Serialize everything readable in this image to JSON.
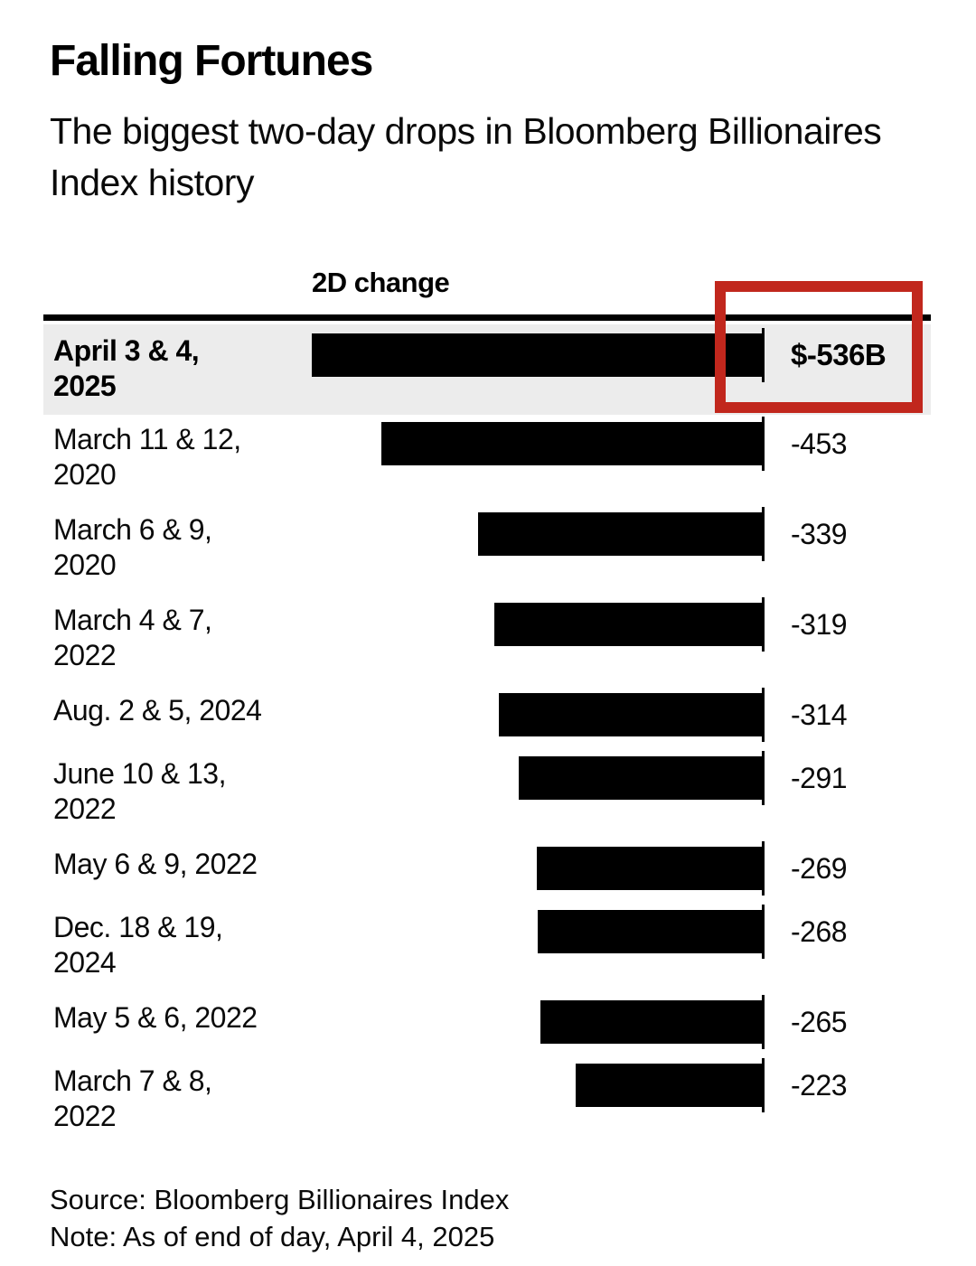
{
  "title": "Falling Fortunes",
  "subtitle": "The biggest two-day drops in Bloomberg Billionaires Index history",
  "column_header": "2D change",
  "chart_data": {
    "type": "bar",
    "orientation": "horizontal",
    "unit": "USD billions",
    "axis_max_abs": 536,
    "categories": [
      "April 3 & 4, 2025",
      "March 11 & 12, 2020",
      "March 6 & 9, 2020",
      "March 4 & 7, 2022",
      "Aug. 2 & 5, 2024",
      "June 10 & 13, 2022",
      "May 6 & 9, 2022",
      "Dec. 18 & 19, 2024",
      "May 5 & 6, 2022",
      "March 7 & 8, 2022"
    ],
    "values": [
      -536,
      -453,
      -339,
      -319,
      -314,
      -291,
      -269,
      -268,
      -265,
      -223
    ],
    "value_labels": [
      "$-536B",
      "-453",
      "-339",
      "-319",
      "-314",
      "-291",
      "-269",
      "-268",
      "-265",
      "-223"
    ],
    "highlight_index": 0,
    "bars_aligned": "right-baseline",
    "grid": false,
    "legend": false,
    "annotation": "red rectangle outlining the highlighted $-536B value"
  },
  "rows": [
    {
      "date_line1": "April 3 & 4,",
      "date_line2": "2025",
      "value_label": "$-536B"
    },
    {
      "date_line1": "March 11 & 12,",
      "date_line2": "2020",
      "value_label": "-453"
    },
    {
      "date_line1": "March 6 & 9,",
      "date_line2": "2020",
      "value_label": "-339"
    },
    {
      "date_line1": "March 4 & 7,",
      "date_line2": "2022",
      "value_label": "-319"
    },
    {
      "date_line1": "Aug. 2 & 5, 2024",
      "date_line2": "",
      "value_label": "-314"
    },
    {
      "date_line1": "June 10 & 13,",
      "date_line2": "2022",
      "value_label": "-291"
    },
    {
      "date_line1": "May 6 & 9, 2022",
      "date_line2": "",
      "value_label": "-269"
    },
    {
      "date_line1": "Dec. 18 & 19,",
      "date_line2": "2024",
      "value_label": "-268"
    },
    {
      "date_line1": "May 5 & 6, 2022",
      "date_line2": "",
      "value_label": "-265"
    },
    {
      "date_line1": "March 7 & 8,",
      "date_line2": "2022",
      "value_label": "-223"
    }
  ],
  "footer": {
    "source": "Source: Bloomberg Billionaires Index",
    "note": "Note: As of end of day, April 4, 2025"
  },
  "colors": {
    "bar": "#000000",
    "highlight_row_bg": "#ececec",
    "annotation_red": "#c1271d",
    "rule": "#000000",
    "background": "#ffffff"
  }
}
